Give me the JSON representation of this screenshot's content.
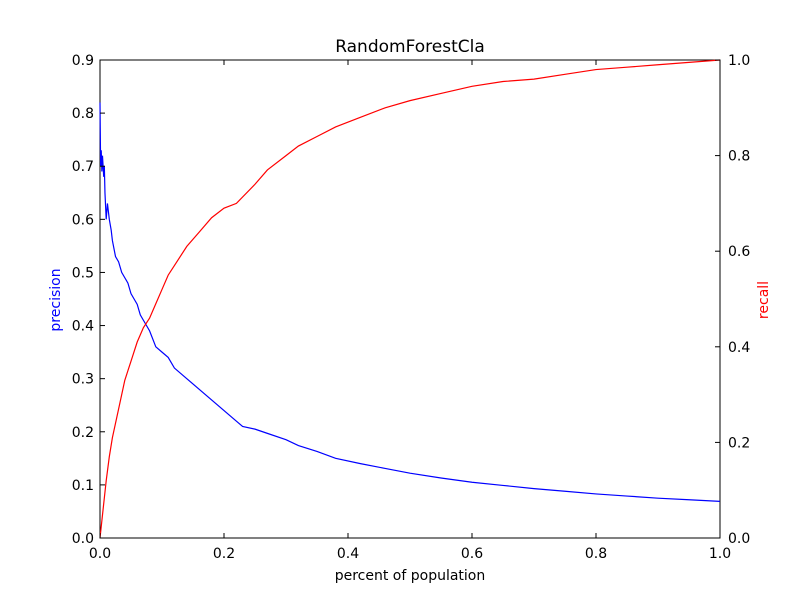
{
  "chart_data": {
    "type": "line",
    "title": "RandomForestCla",
    "xlabel": "percent of population",
    "ylabel_left": "precision",
    "ylabel_right": "recall",
    "xlim": [
      0.0,
      1.0
    ],
    "ylim_left": [
      0.0,
      0.9
    ],
    "ylim_right": [
      0.0,
      1.0
    ],
    "xticks": [
      "0.0",
      "0.2",
      "0.4",
      "0.6",
      "0.8",
      "1.0"
    ],
    "yticks_left": [
      "0.0",
      "0.1",
      "0.2",
      "0.3",
      "0.4",
      "0.5",
      "0.6",
      "0.7",
      "0.8",
      "0.9"
    ],
    "yticks_right": [
      "0.0",
      "0.2",
      "0.4",
      "0.6",
      "0.8",
      "1.0"
    ],
    "grid": false,
    "series": [
      {
        "color": "#0000ff",
        "axis": "left",
        "x": [
          0.0,
          0.001,
          0.002,
          0.003,
          0.004,
          0.005,
          0.006,
          0.007,
          0.008,
          0.01,
          0.012,
          0.015,
          0.018,
          0.02,
          0.025,
          0.03,
          0.035,
          0.04,
          0.045,
          0.05,
          0.055,
          0.06,
          0.065,
          0.07,
          0.08,
          0.09,
          0.1,
          0.11,
          0.12,
          0.14,
          0.16,
          0.18,
          0.2,
          0.22,
          0.23,
          0.25,
          0.27,
          0.3,
          0.32,
          0.35,
          0.38,
          0.42,
          0.46,
          0.5,
          0.55,
          0.6,
          0.65,
          0.7,
          0.75,
          0.8,
          0.85,
          0.9,
          0.95,
          1.0
        ],
        "y": [
          0.82,
          0.7,
          0.73,
          0.69,
          0.72,
          0.7,
          0.68,
          0.7,
          0.65,
          0.6,
          0.63,
          0.6,
          0.58,
          0.56,
          0.53,
          0.52,
          0.5,
          0.49,
          0.48,
          0.46,
          0.45,
          0.44,
          0.42,
          0.41,
          0.39,
          0.36,
          0.35,
          0.34,
          0.32,
          0.3,
          0.28,
          0.26,
          0.24,
          0.22,
          0.21,
          0.205,
          0.197,
          0.185,
          0.174,
          0.163,
          0.15,
          0.14,
          0.131,
          0.122,
          0.113,
          0.105,
          0.099,
          0.093,
          0.088,
          0.083,
          0.079,
          0.075,
          0.072,
          0.069
        ]
      },
      {
        "color": "#ff0000",
        "axis": "right",
        "x": [
          0.0,
          0.005,
          0.01,
          0.015,
          0.02,
          0.03,
          0.04,
          0.05,
          0.06,
          0.07,
          0.08,
          0.09,
          0.1,
          0.11,
          0.12,
          0.14,
          0.16,
          0.18,
          0.2,
          0.22,
          0.25,
          0.27,
          0.3,
          0.32,
          0.35,
          0.38,
          0.42,
          0.46,
          0.5,
          0.55,
          0.6,
          0.65,
          0.7,
          0.75,
          0.8,
          0.85,
          0.9,
          0.95,
          1.0
        ],
        "y": [
          0.0,
          0.06,
          0.12,
          0.17,
          0.21,
          0.27,
          0.33,
          0.37,
          0.41,
          0.44,
          0.46,
          0.49,
          0.52,
          0.55,
          0.57,
          0.61,
          0.64,
          0.67,
          0.69,
          0.7,
          0.74,
          0.77,
          0.8,
          0.82,
          0.84,
          0.86,
          0.88,
          0.9,
          0.915,
          0.93,
          0.945,
          0.955,
          0.96,
          0.97,
          0.98,
          0.985,
          0.99,
          0.995,
          1.0
        ]
      }
    ]
  }
}
